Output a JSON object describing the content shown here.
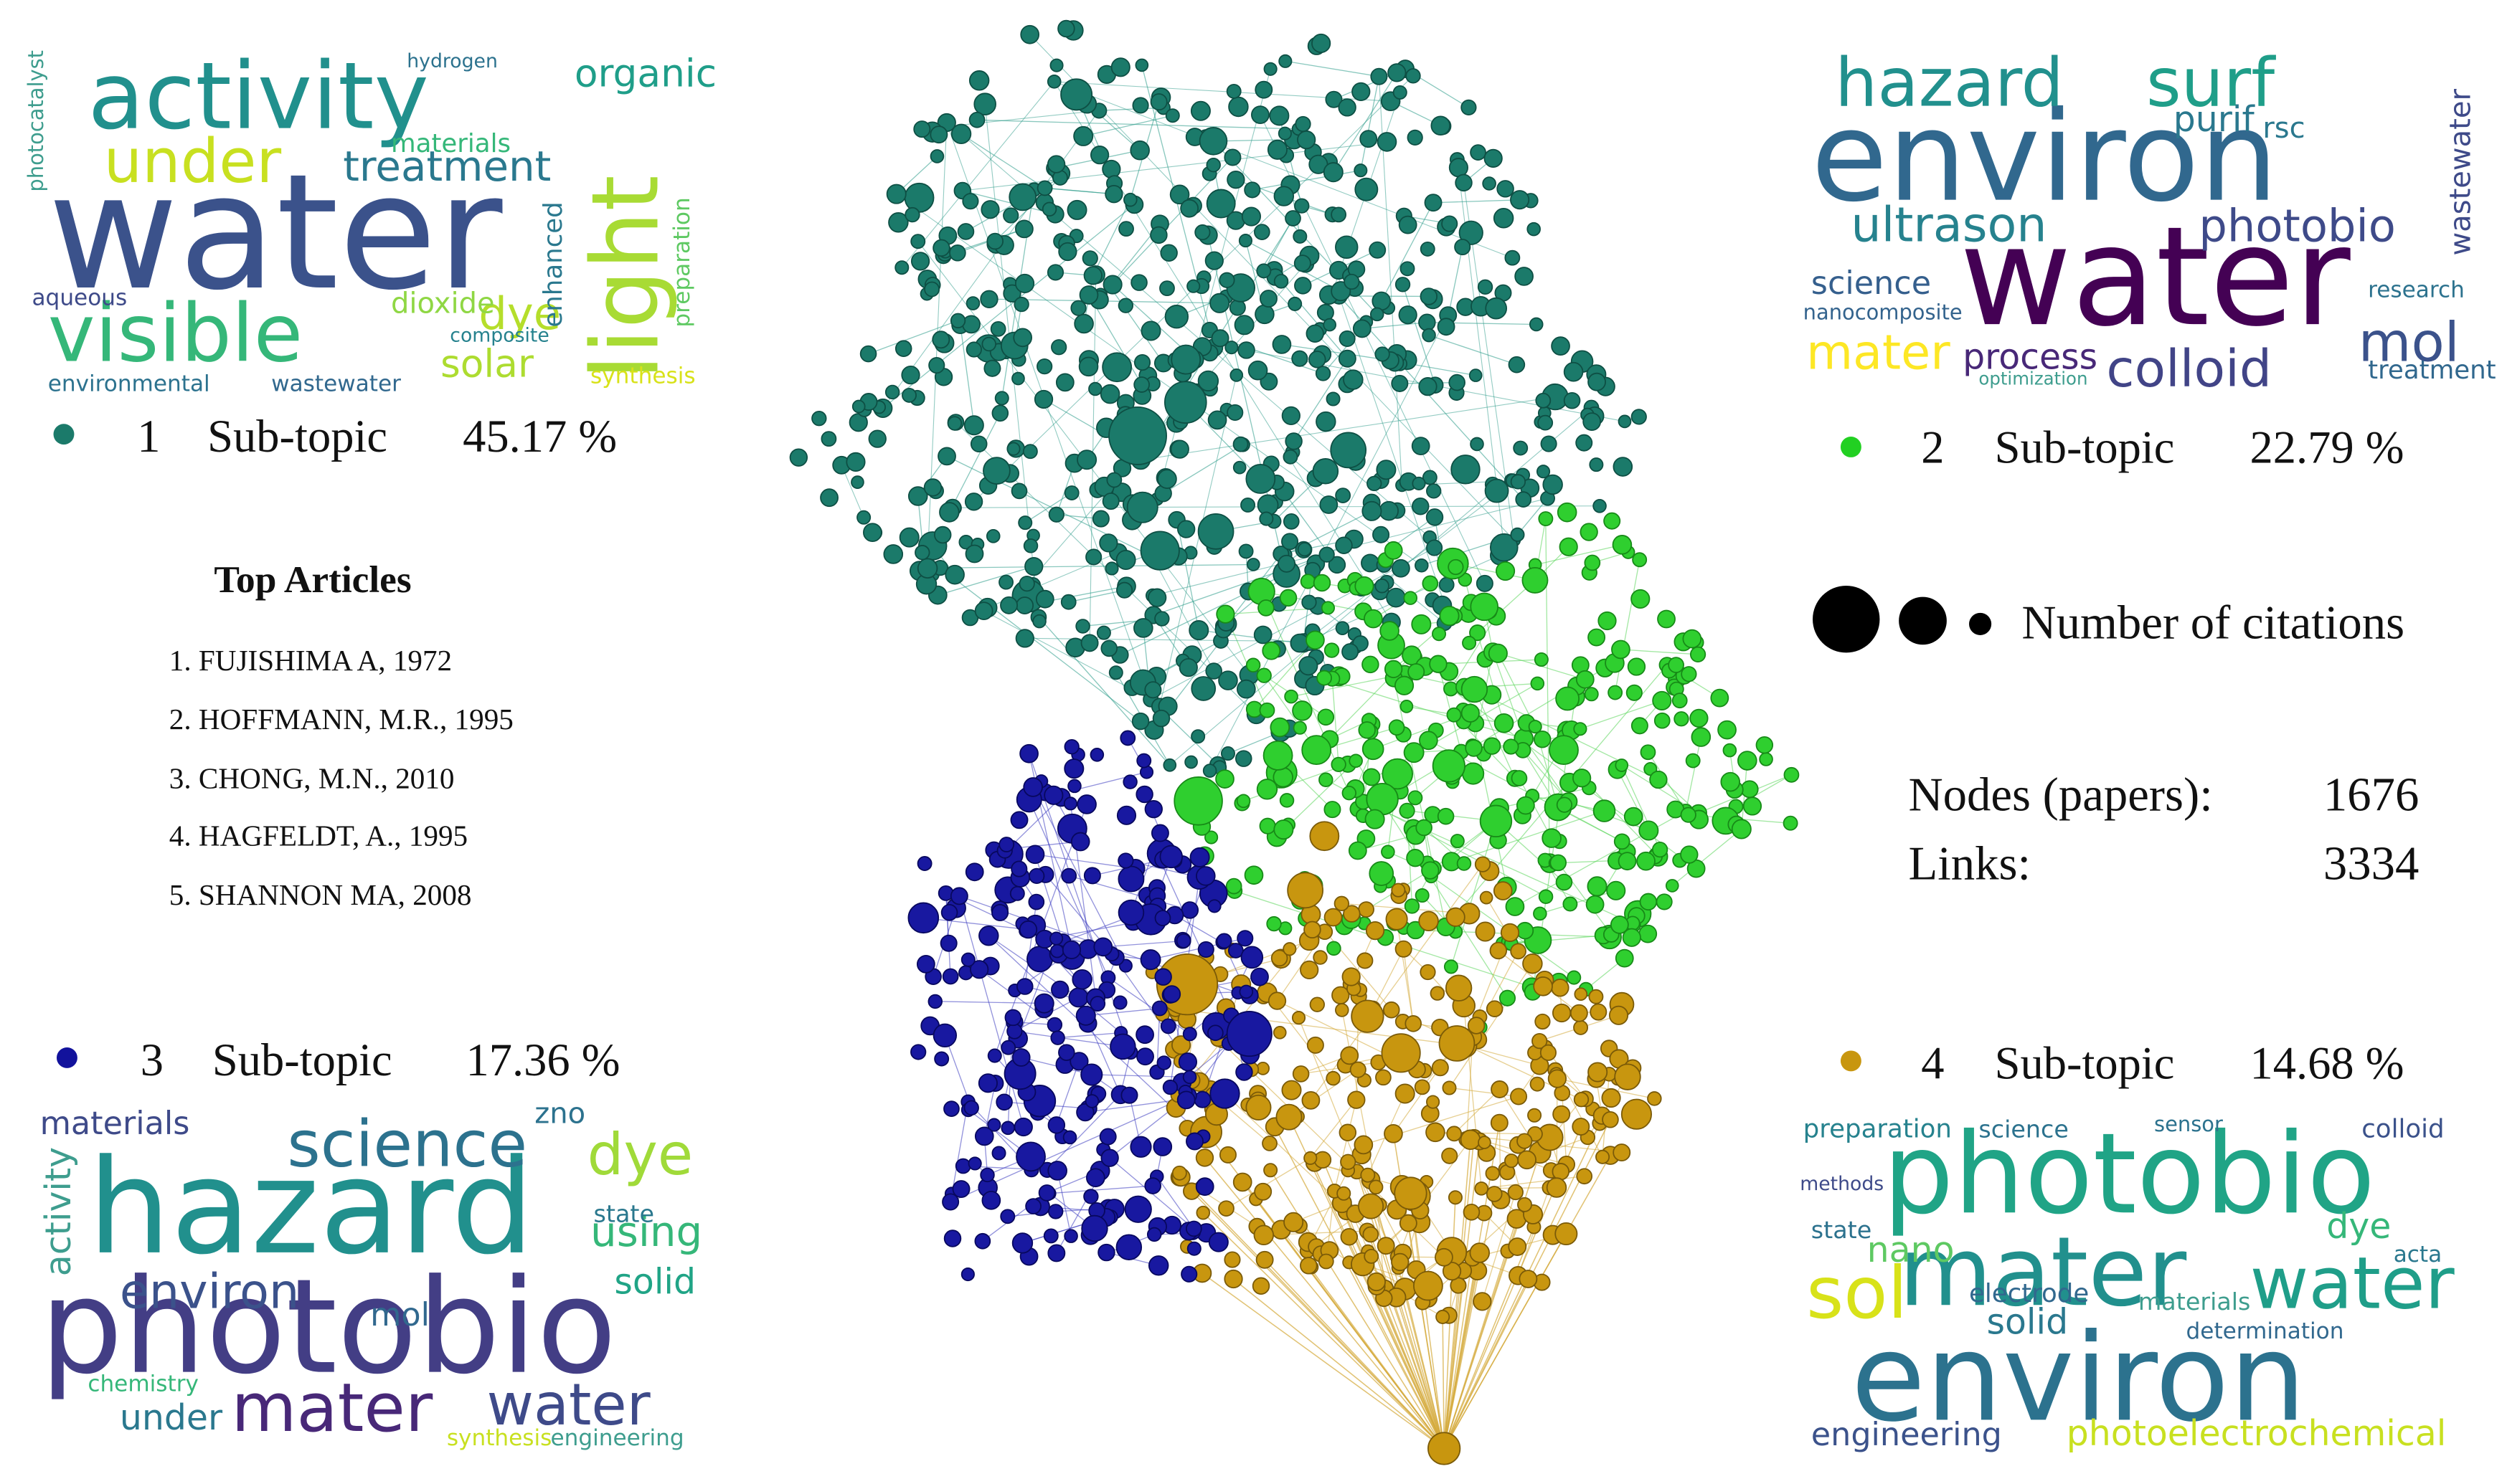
{
  "subtopics": [
    {
      "number": "1",
      "label": "Sub-topic",
      "share": "45.17 %",
      "words": [
        "water",
        "activity",
        "visible",
        "light",
        "under",
        "treatment",
        "organic",
        "dye",
        "solar",
        "environmental",
        "wastewater",
        "aqueous",
        "synthesis",
        "enhanced",
        "preparation",
        "dioxide",
        "materials",
        "photocatalyst",
        "hydrogen",
        "composite"
      ]
    },
    {
      "number": "2",
      "label": "Sub-topic",
      "share": "22.79 %",
      "words": [
        "environ",
        "water",
        "hazard",
        "surf",
        "ultrason",
        "photobio",
        "colloid",
        "mater",
        "mol",
        "process",
        "science",
        "purif",
        "treatment",
        "wastewater",
        "nanocomposite",
        "research",
        "rsc",
        "optimization"
      ]
    },
    {
      "number": "3",
      "label": "Sub-topic",
      "share": "17.36 %",
      "words": [
        "photobio",
        "hazard",
        "science",
        "mater",
        "dye",
        "water",
        "environ",
        "materials",
        "under",
        "using",
        "solid",
        "mol",
        "activity",
        "zno",
        "synthesis",
        "engineering",
        "chemistry",
        "state"
      ]
    },
    {
      "number": "4",
      "label": "Sub-topic",
      "share": "14.68 %",
      "words": [
        "environ",
        "photobio",
        "mater",
        "water",
        "sol",
        "engineering",
        "photoelectrochemical",
        "preparation",
        "science",
        "solid",
        "nano",
        "state",
        "electrode",
        "materials",
        "dye",
        "colloid",
        "sensor",
        "determination",
        "methods",
        "acta"
      ]
    }
  ],
  "top_articles": {
    "title": "Top Articles",
    "items": [
      "1. FUJISHIMA A, 1972",
      "2. HOFFMANN, M.R., 1995",
      "3. CHONG, M.N., 2010",
      "4. HAGFELDT, A., 1995",
      "5. SHANNON MA, 2008"
    ]
  },
  "legend": {
    "label": "Number of citations"
  },
  "stats": {
    "rows": [
      [
        "Nodes (papers):",
        "1676"
      ],
      [
        "Links:",
        "3334"
      ]
    ]
  }
}
